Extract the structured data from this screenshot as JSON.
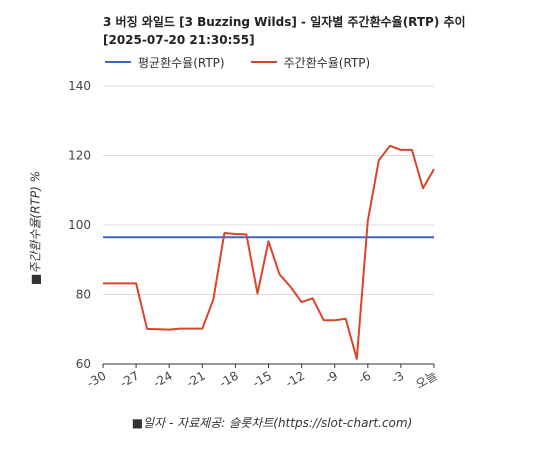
{
  "chart_data": {
    "type": "line",
    "title_line1": "3 버징 와일드 [3 Buzzing Wilds] - 일자별 주간환수율(RTP) 추이",
    "title_line2": "[2025-07-20 21:30:55]",
    "ylabel": "■주간환수율(RTP) %",
    "xlabel": "■일자 - 자료제공: 슬롯차트(https://slot-chart.com)",
    "ylim": [
      60,
      140
    ],
    "yticks": [
      60,
      80,
      100,
      120,
      140
    ],
    "xlim": [
      -30,
      0
    ],
    "xticks": [
      {
        "x": -30,
        "label": "-30"
      },
      {
        "x": -27,
        "label": "-27"
      },
      {
        "x": -24,
        "label": "-24"
      },
      {
        "x": -21,
        "label": "-21"
      },
      {
        "x": -18,
        "label": "-18"
      },
      {
        "x": -15,
        "label": "-15"
      },
      {
        "x": -12,
        "label": "-12"
      },
      {
        "x": -9,
        "label": "-9"
      },
      {
        "x": -6,
        "label": "-6"
      },
      {
        "x": -3,
        "label": "-3"
      },
      {
        "x": 0,
        "label": "오늘"
      }
    ],
    "grid": {
      "horizontal": true,
      "vertical": false
    },
    "legend_position": "top-left",
    "series": [
      {
        "name": "평균환수율(RTP)",
        "color": "#3a66c4",
        "x": [
          -30,
          0
        ],
        "values": [
          96.5,
          96.5
        ]
      },
      {
        "name": "주간환수율(RTP)",
        "color": "#d9452b",
        "x": [
          -30,
          -29,
          -28,
          -27,
          -26,
          -25,
          -24,
          -23,
          -22,
          -21,
          -20,
          -19,
          -18,
          -17,
          -16,
          -15,
          -14,
          -13,
          -12,
          -11,
          -10,
          -9,
          -8,
          -7,
          -6,
          -5,
          -4,
          -3,
          -2,
          -1,
          0
        ],
        "values": [
          83.2,
          83.2,
          83.2,
          83.2,
          70.1,
          70.0,
          69.9,
          70.2,
          70.2,
          70.2,
          78.5,
          97.7,
          97.4,
          97.3,
          80.3,
          95.3,
          85.8,
          82.2,
          77.8,
          78.9,
          72.6,
          72.6,
          73.0,
          61.5,
          101.2,
          118.6,
          122.8,
          121.6,
          121.6,
          110.6,
          116.1
        ]
      }
    ]
  }
}
